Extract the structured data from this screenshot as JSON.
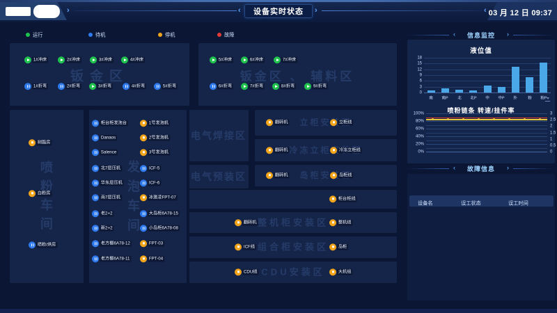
{
  "header": {
    "title": "设备实时状态",
    "datetime": "03 月 12 日 09:37"
  },
  "legend": [
    {
      "label": "运行",
      "status": "running",
      "color": "#1fc24d"
    },
    {
      "label": "待机",
      "status": "standby",
      "color": "#2e7bf0"
    },
    {
      "label": "停机",
      "status": "stopped",
      "color": "#f2a51a"
    },
    {
      "label": "故障",
      "status": "fault",
      "color": "#e23c36"
    }
  ],
  "zones": [
    {
      "id": "banjin",
      "watermark": "钣金区",
      "items": [
        {
          "label": "1#冲床",
          "status": "running"
        },
        {
          "label": "2#冲床",
          "status": "running"
        },
        {
          "label": "3#冲床",
          "status": "running"
        },
        {
          "label": "4#冲床",
          "status": "running"
        },
        {
          "label": "1#折弯",
          "status": "standby"
        },
        {
          "label": "2#折弯",
          "status": "standby"
        },
        {
          "label": "3#折弯",
          "status": "running"
        },
        {
          "label": "4#折弯",
          "status": "standby"
        },
        {
          "label": "5#折弯",
          "status": "standby"
        }
      ]
    },
    {
      "id": "fuliao",
      "watermark": "钣金区 、 辅料区",
      "items": [
        {
          "label": "5#冲床",
          "status": "running"
        },
        {
          "label": "6#冲床",
          "status": "running"
        },
        {
          "label": "7#冲床",
          "status": "running"
        },
        {
          "label": "6#折弯",
          "status": "standby"
        },
        {
          "label": "7#折弯",
          "status": "running"
        },
        {
          "label": "8#折弯",
          "status": "running"
        },
        {
          "label": "9#折弯",
          "status": "running"
        }
      ]
    },
    {
      "id": "penfen",
      "watermark": "喷粉车间",
      "items": [
        {
          "label": "树脂房",
          "status": "stopped"
        },
        {
          "label": "白粉房",
          "status": "stopped"
        },
        {
          "label": "喷粉/烘房",
          "status": "standby"
        }
      ]
    },
    {
      "id": "fapao",
      "watermark": "发泡车间",
      "items": [
        {
          "label": "柜台柜发泡台",
          "status": "standby"
        },
        {
          "label": "Danaos",
          "status": "standby"
        },
        {
          "label": "Salence",
          "status": "standby"
        },
        {
          "label": "北7层压机",
          "status": "standby"
        },
        {
          "label": "华东层压机",
          "status": "standby"
        },
        {
          "label": "南7层压机",
          "status": "standby"
        },
        {
          "label": "老2+2",
          "status": "standby"
        },
        {
          "label": "新2+2",
          "status": "standby"
        },
        {
          "label": "老方棚6A78-12",
          "status": "standby"
        },
        {
          "label": "老方棚6A78-11",
          "status": "standby"
        },
        {
          "label": "1号发泡机",
          "status": "stopped"
        },
        {
          "label": "2号发泡机",
          "status": "stopped"
        },
        {
          "label": "3号发泡机",
          "status": "stopped"
        },
        {
          "label": "ICF-5",
          "status": "standby"
        },
        {
          "label": "ICF-6",
          "status": "standby"
        },
        {
          "label": "冰激凌FPT-07",
          "status": "stopped"
        },
        {
          "label": "大岛柜6A78-15",
          "status": "standby"
        },
        {
          "label": "小岛柜6A78-08",
          "status": "standby"
        },
        {
          "label": "FPT-03",
          "status": "stopped"
        },
        {
          "label": "FPT-04",
          "status": "stopped"
        }
      ]
    },
    {
      "id": "dianqihanjie",
      "watermark": "电气焊接区",
      "items": []
    },
    {
      "id": "dianqiyuzhuang",
      "watermark": "电气预装区",
      "items": []
    },
    {
      "id": "ligui",
      "watermark": "立柜安装区",
      "items": [
        {
          "label": "翻转机",
          "status": "stopped"
        },
        {
          "label": "立柜线",
          "status": "stopped"
        }
      ]
    },
    {
      "id": "lengdongligui",
      "watermark": "冷冻立柜安装区",
      "items": [
        {
          "label": "翻转机",
          "status": "stopped"
        },
        {
          "label": "冷冻立柜线",
          "status": "stopped"
        }
      ]
    },
    {
      "id": "daogui",
      "watermark": "岛柜安装区",
      "items": [
        {
          "label": "翻转机",
          "status": "stopped"
        },
        {
          "label": "岛柜线",
          "status": "stopped"
        }
      ]
    },
    {
      "id": "guitaigui",
      "watermark": "",
      "items": [
        {
          "label": "柜台柜线",
          "status": "stopped"
        }
      ]
    },
    {
      "id": "zhengjigui",
      "watermark": "整机柜安装区",
      "items": [
        {
          "label": "翻转机",
          "status": "stopped"
        },
        {
          "label": "整机线",
          "status": "stopped"
        }
      ]
    },
    {
      "id": "zuhegui",
      "watermark": "组合柜安装区",
      "items": [
        {
          "label": "ICF线",
          "status": "stopped"
        },
        {
          "label": "岛柜",
          "status": "stopped"
        }
      ]
    },
    {
      "id": "cdu",
      "watermark": "CDU安装区",
      "items": [
        {
          "label": "CDU线",
          "status": "stopped"
        },
        {
          "label": "大机组",
          "status": "stopped"
        }
      ]
    }
  ],
  "monitor": {
    "section_title": "信息监控"
  },
  "chart_data": [
    {
      "type": "bar",
      "title": "液位值",
      "categories": [
        "南",
        "南P",
        "北",
        "北P",
        "中",
        "中P",
        "外",
        "粉",
        "粉P"
      ],
      "values": [
        1,
        2.2,
        1.5,
        1.2,
        3.5,
        3,
        13.5,
        8,
        15.5
      ],
      "ylim": [
        0,
        18
      ],
      "yticks": [
        0,
        3,
        6,
        9,
        12,
        15,
        18
      ],
      "bar_color": "#4aa8e8"
    },
    {
      "type": "line",
      "title": "喷粉链条 转速/挂件率",
      "left_axis_ticks": [
        "0%",
        "20%",
        "40%",
        "60%",
        "80%",
        "100%"
      ],
      "right_axis_ticks": [
        "0",
        "0.5",
        "1",
        "1.5",
        "2",
        "2.5",
        "3"
      ],
      "series": [
        {
          "name": "转速",
          "color": "#e0392f",
          "y_pct": 90
        },
        {
          "name": "挂件率",
          "color": "#e7c93c",
          "y_pct": 85,
          "markers": true
        }
      ]
    }
  ],
  "faults": {
    "section_title": "故障信息",
    "columns": [
      "设备名",
      "误工状态",
      "误工时间"
    ],
    "rows": []
  }
}
